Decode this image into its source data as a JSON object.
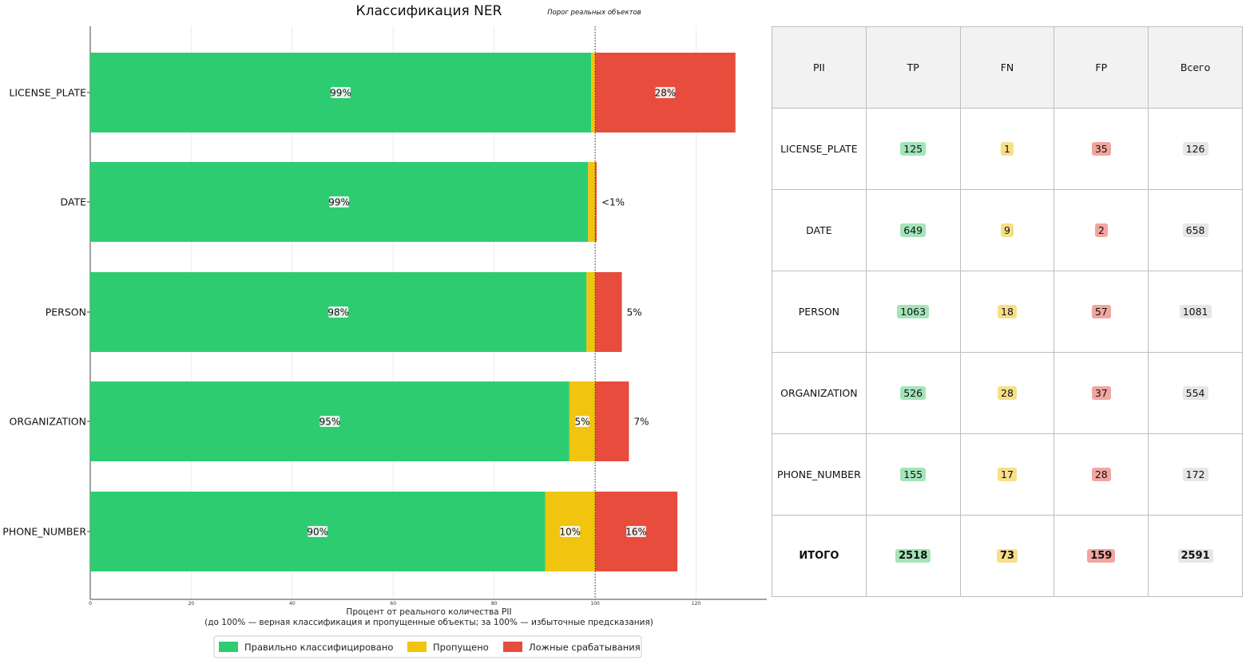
{
  "chart_data": {
    "type": "bar",
    "orientation": "horizontal",
    "stacked": true,
    "title": "Классификация NER",
    "threshold_label": "Порог реальных объектов",
    "threshold_value": 100,
    "xlabel_line1": "Процент от реального количества PII",
    "xlabel_line2": "(до 100% — верная классификация и пропущенные объекты; за 100% — избыточные предсказания)",
    "xlim": [
      0,
      134
    ],
    "xticks": [
      0,
      20,
      40,
      60,
      80,
      100,
      120
    ],
    "categories": [
      "LICENSE_PLATE",
      "DATE",
      "PERSON",
      "ORGANIZATION",
      "PHONE_NUMBER"
    ],
    "series": [
      {
        "name": "Правильно классифицировано",
        "color": "#2ecc71",
        "values": [
          99.2,
          98.6,
          98.3,
          94.9,
          90.1
        ],
        "labels": [
          "99%",
          "99%",
          "98%",
          "95%",
          "90%"
        ]
      },
      {
        "name": "Пропущено",
        "color": "#f1c40f",
        "values": [
          0.8,
          1.4,
          1.7,
          5.1,
          9.9
        ],
        "labels": [
          "",
          "",
          "",
          "5%",
          "10%"
        ]
      },
      {
        "name": "Ложные срабатывания",
        "color": "#e74c3c",
        "values": [
          27.8,
          0.3,
          5.3,
          6.7,
          16.3
        ],
        "labels": [
          "28%",
          "<1%",
          "5%",
          "7%",
          "16%"
        ]
      }
    ],
    "legend_position": "bottom-center"
  },
  "table": {
    "headers": [
      "PII",
      "TP",
      "FN",
      "FP",
      "Всего"
    ],
    "rows": [
      [
        "LICENSE_PLATE",
        "125",
        "1",
        "35",
        "126"
      ],
      [
        "DATE",
        "649",
        "9",
        "2",
        "658"
      ],
      [
        "PERSON",
        "1063",
        "18",
        "57",
        "1081"
      ],
      [
        "ORGANIZATION",
        "526",
        "28",
        "37",
        "554"
      ],
      [
        "PHONE_NUMBER",
        "155",
        "17",
        "28",
        "172"
      ]
    ],
    "total": [
      "ИТОГО",
      "2518",
      "73",
      "159",
      "2591"
    ]
  }
}
